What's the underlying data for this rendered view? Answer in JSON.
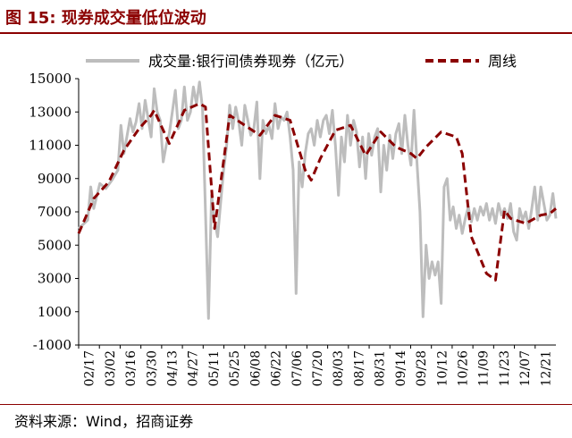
{
  "header": {
    "title": "图 15:  现券成交量低位波动"
  },
  "footer": {
    "source": "资料来源：Wind，招商证券"
  },
  "colors": {
    "title": "#8b0000",
    "series_daily": "#bdbdbd",
    "series_weekly": "#8b0000",
    "axis": "#000000"
  },
  "chart_data": {
    "type": "line",
    "legend_position": "top",
    "grid": false,
    "ylim": [
      -1000,
      15000
    ],
    "yticks": [
      "15000",
      "13000",
      "11000",
      "9000",
      "7000",
      "5000",
      "3000",
      "1000",
      "-1000"
    ],
    "xticks": [
      "02/17",
      "03/02",
      "03/16",
      "03/30",
      "04/13",
      "04/27",
      "05/11",
      "05/25",
      "06/08",
      "06/22",
      "07/06",
      "07/20",
      "08/03",
      "08/17",
      "08/31",
      "09/14",
      "09/28",
      "10/12",
      "10/26",
      "11/09",
      "11/23",
      "12/07",
      "12/21"
    ],
    "series": [
      {
        "name": "成交量:银行间债券现券（亿元）",
        "style": "solid",
        "points": [
          [
            0,
            6000
          ],
          [
            3,
            6500
          ],
          [
            4,
            8500
          ],
          [
            5,
            7200
          ],
          [
            7,
            8700
          ],
          [
            9,
            8400
          ],
          [
            11,
            8900
          ],
          [
            13,
            9500
          ],
          [
            14,
            12200
          ],
          [
            15,
            10500
          ],
          [
            17,
            12600
          ],
          [
            18,
            11800
          ],
          [
            19,
            12400
          ],
          [
            20,
            13500
          ],
          [
            21,
            12000
          ],
          [
            22,
            13700
          ],
          [
            24,
            11500
          ],
          [
            25,
            14400
          ],
          [
            26,
            13000
          ],
          [
            27,
            12500
          ],
          [
            28,
            10000
          ],
          [
            29,
            11000
          ],
          [
            30,
            11700
          ],
          [
            31,
            13000
          ],
          [
            32,
            14300
          ],
          [
            33,
            12000
          ],
          [
            34,
            12500
          ],
          [
            35,
            14500
          ],
          [
            36,
            12500
          ],
          [
            37,
            13000
          ],
          [
            38,
            14500
          ],
          [
            39,
            13500
          ],
          [
            40,
            14800
          ],
          [
            41,
            13200
          ],
          [
            42,
            7000
          ],
          [
            43,
            600
          ],
          [
            44,
            8000
          ],
          [
            45,
            6500
          ],
          [
            46,
            5500
          ],
          [
            47,
            7500
          ],
          [
            48,
            9500
          ],
          [
            49,
            11000
          ],
          [
            50,
            13400
          ],
          [
            51,
            12000
          ],
          [
            52,
            13300
          ],
          [
            53,
            12400
          ],
          [
            54,
            11000
          ],
          [
            55,
            13400
          ],
          [
            56,
            12500
          ],
          [
            57,
            11600
          ],
          [
            58,
            12000
          ],
          [
            59,
            13600
          ],
          [
            60,
            9000
          ],
          [
            61,
            12500
          ],
          [
            62,
            11700
          ],
          [
            63,
            12200
          ],
          [
            64,
            11400
          ],
          [
            65,
            13500
          ],
          [
            66,
            12000
          ],
          [
            67,
            12700
          ],
          [
            68,
            12500
          ],
          [
            69,
            13000
          ],
          [
            70,
            11500
          ],
          [
            71,
            9500
          ],
          [
            72,
            2100
          ],
          [
            73,
            10000
          ],
          [
            74,
            8500
          ],
          [
            75,
            10500
          ],
          [
            76,
            11700
          ],
          [
            77,
            12000
          ],
          [
            78,
            11000
          ],
          [
            79,
            12500
          ],
          [
            80,
            11500
          ],
          [
            81,
            12500
          ],
          [
            82,
            12800
          ],
          [
            83,
            11700
          ],
          [
            84,
            13100
          ],
          [
            85,
            11000
          ],
          [
            86,
            8000
          ],
          [
            87,
            11500
          ],
          [
            88,
            10000
          ],
          [
            89,
            12800
          ],
          [
            90,
            11000
          ],
          [
            91,
            12500
          ],
          [
            92,
            11800
          ],
          [
            93,
            9700
          ],
          [
            94,
            11500
          ],
          [
            95,
            9000
          ],
          [
            96,
            11700
          ],
          [
            97,
            10400
          ],
          [
            98,
            11500
          ],
          [
            99,
            12000
          ],
          [
            100,
            8200
          ],
          [
            101,
            11000
          ],
          [
            102,
            9500
          ],
          [
            103,
            11600
          ],
          [
            104,
            10200
          ],
          [
            105,
            11700
          ],
          [
            106,
            12300
          ],
          [
            107,
            10500
          ],
          [
            108,
            12800
          ],
          [
            109,
            11000
          ],
          [
            110,
            9800
          ],
          [
            111,
            13100
          ],
          [
            112,
            10000
          ],
          [
            113,
            7000
          ],
          [
            114,
            700
          ],
          [
            115,
            5000
          ],
          [
            116,
            3000
          ],
          [
            117,
            4000
          ],
          [
            118,
            3200
          ],
          [
            119,
            4000
          ],
          [
            120,
            1500
          ],
          [
            121,
            8500
          ],
          [
            122,
            9000
          ],
          [
            123,
            6500
          ],
          [
            124,
            7300
          ],
          [
            125,
            6000
          ],
          [
            126,
            6800
          ],
          [
            127,
            5700
          ],
          [
            128,
            6600
          ],
          [
            129,
            7300
          ],
          [
            130,
            6400
          ],
          [
            131,
            7200
          ],
          [
            132,
            6500
          ],
          [
            133,
            7300
          ],
          [
            134,
            6800
          ],
          [
            135,
            7500
          ],
          [
            136,
            6500
          ],
          [
            137,
            7200
          ],
          [
            138,
            6300
          ],
          [
            139,
            7500
          ],
          [
            140,
            6800
          ],
          [
            141,
            7200
          ],
          [
            142,
            6600
          ],
          [
            143,
            7500
          ],
          [
            144,
            5800
          ],
          [
            145,
            5300
          ],
          [
            146,
            7200
          ],
          [
            147,
            6500
          ],
          [
            148,
            7000
          ],
          [
            149,
            6000
          ],
          [
            150,
            7200
          ],
          [
            151,
            8500
          ],
          [
            152,
            6500
          ],
          [
            153,
            8500
          ],
          [
            154,
            7500
          ],
          [
            155,
            6500
          ],
          [
            156,
            6800
          ],
          [
            157,
            8100
          ],
          [
            158,
            6600
          ]
        ]
      },
      {
        "name": "周线",
        "style": "dashed",
        "points": [
          [
            0,
            5700
          ],
          [
            5,
            7800
          ],
          [
            10,
            8800
          ],
          [
            15,
            10700
          ],
          [
            20,
            12000
          ],
          [
            24,
            12800
          ],
          [
            25,
            13100
          ],
          [
            30,
            11100
          ],
          [
            35,
            13100
          ],
          [
            40,
            13500
          ],
          [
            42,
            13300
          ],
          [
            45,
            6000
          ],
          [
            50,
            12800
          ],
          [
            55,
            12200
          ],
          [
            60,
            11600
          ],
          [
            65,
            12800
          ],
          [
            70,
            12500
          ],
          [
            75,
            9500
          ],
          [
            77,
            8900
          ],
          [
            80,
            10200
          ],
          [
            85,
            11900
          ],
          [
            90,
            12200
          ],
          [
            95,
            10400
          ],
          [
            100,
            11800
          ],
          [
            105,
            10900
          ],
          [
            110,
            10500
          ],
          [
            112,
            10200
          ],
          [
            115,
            10900
          ],
          [
            120,
            11800
          ],
          [
            125,
            11500
          ],
          [
            127,
            10500
          ],
          [
            130,
            5500
          ],
          [
            135,
            3300
          ],
          [
            138,
            2900
          ],
          [
            141,
            7100
          ],
          [
            143,
            6600
          ],
          [
            148,
            6300
          ],
          [
            153,
            6800
          ],
          [
            156,
            6900
          ],
          [
            158,
            7200
          ]
        ]
      }
    ]
  }
}
